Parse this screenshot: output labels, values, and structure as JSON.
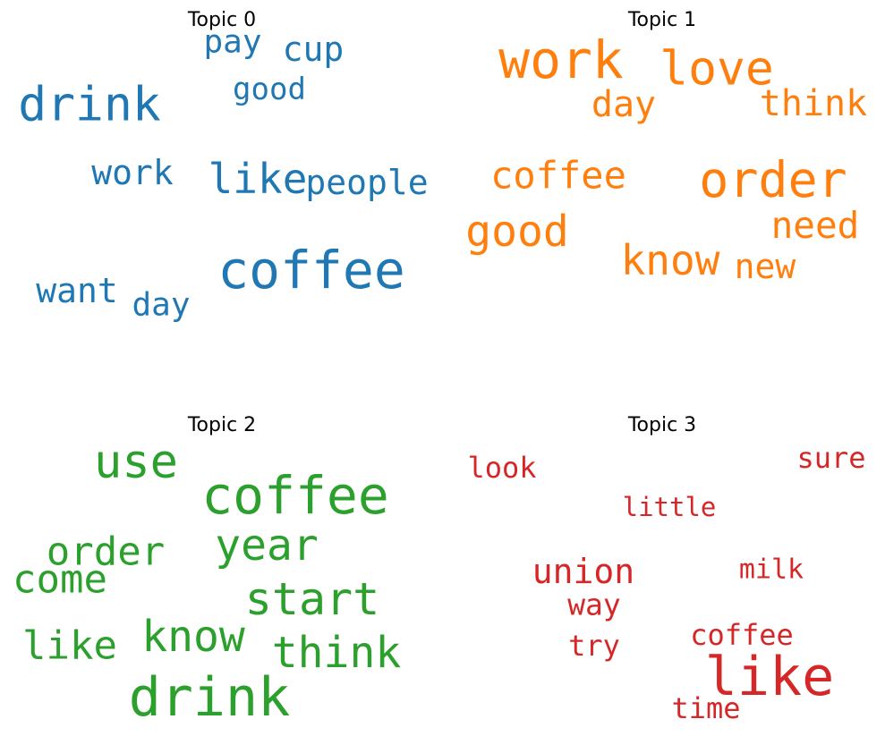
{
  "chart_data": [
    {
      "type": "wordcloud",
      "title": "Topic 0",
      "color": "#1f77b4",
      "words": [
        {
          "text": "pay",
          "size": 36
        },
        {
          "text": "cup",
          "size": 38
        },
        {
          "text": "drink",
          "size": 53
        },
        {
          "text": "good",
          "size": 34
        },
        {
          "text": "work",
          "size": 38
        },
        {
          "text": "like",
          "size": 46
        },
        {
          "text": "people",
          "size": 38
        },
        {
          "text": "coffee",
          "size": 58
        },
        {
          "text": "want",
          "size": 38
        },
        {
          "text": "day",
          "size": 36
        }
      ]
    },
    {
      "type": "wordcloud",
      "title": "Topic 1",
      "color": "#ff7f0e",
      "words": [
        {
          "text": "work",
          "size": 58
        },
        {
          "text": "love",
          "size": 53
        },
        {
          "text": "day",
          "size": 40
        },
        {
          "text": "think",
          "size": 40
        },
        {
          "text": "coffee",
          "size": 42
        },
        {
          "text": "order",
          "size": 55
        },
        {
          "text": "good",
          "size": 48
        },
        {
          "text": "need",
          "size": 41
        },
        {
          "text": "know",
          "size": 46
        },
        {
          "text": "new",
          "size": 38
        }
      ]
    },
    {
      "type": "wordcloud",
      "title": "Topic 2",
      "color": "#2ca02c",
      "words": [
        {
          "text": "use",
          "size": 52
        },
        {
          "text": "coffee",
          "size": 58
        },
        {
          "text": "order",
          "size": 44
        },
        {
          "text": "year",
          "size": 48
        },
        {
          "text": "come",
          "size": 44
        },
        {
          "text": "start",
          "size": 50
        },
        {
          "text": "like",
          "size": 44
        },
        {
          "text": "know",
          "size": 48
        },
        {
          "text": "think",
          "size": 48
        },
        {
          "text": "drink",
          "size": 60
        }
      ]
    },
    {
      "type": "wordcloud",
      "title": "Topic 3",
      "color": "#d62728",
      "words": [
        {
          "text": "look",
          "size": 32
        },
        {
          "text": "sure",
          "size": 32
        },
        {
          "text": "little",
          "size": 29
        },
        {
          "text": "union",
          "size": 38
        },
        {
          "text": "milk",
          "size": 30
        },
        {
          "text": "way",
          "size": 33
        },
        {
          "text": "coffee",
          "size": 32
        },
        {
          "text": "try",
          "size": 32
        },
        {
          "text": "like",
          "size": 60
        },
        {
          "text": "time",
          "size": 32
        }
      ]
    }
  ]
}
